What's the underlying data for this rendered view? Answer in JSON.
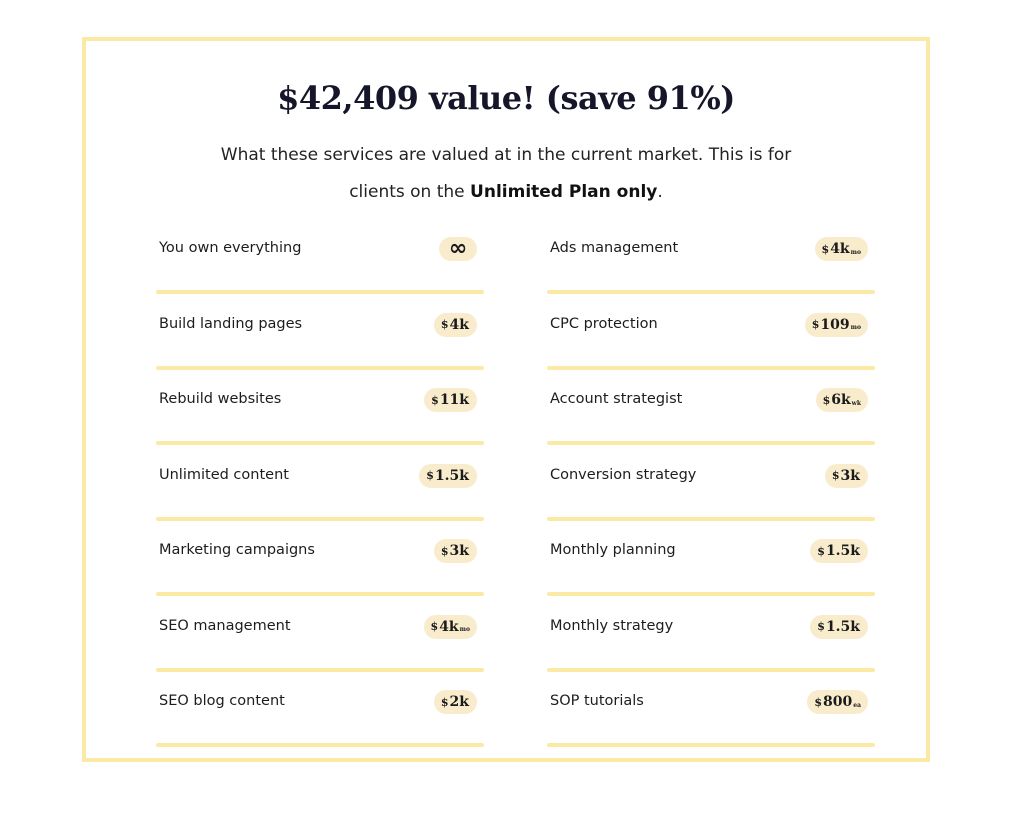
{
  "header": {
    "title": "$42,409 value! (save 91%)",
    "subtitle_line1": "What these services are valued at in the current market. This is for",
    "subtitle_line2_prefix": "clients on the ",
    "subtitle_line2_bold": "Unlimited Plan only",
    "subtitle_line2_suffix": "."
  },
  "left_items": [
    {
      "label": "You own everything",
      "icon": "infinity-icon"
    },
    {
      "label": "Build landing pages",
      "currency": "$",
      "amount": "4k",
      "period": ""
    },
    {
      "label": "Rebuild websites",
      "currency": "$",
      "amount": "11k",
      "period": ""
    },
    {
      "label": "Unlimited content",
      "currency": "$",
      "amount": "1.5k",
      "period": ""
    },
    {
      "label": "Marketing campaigns",
      "currency": "$",
      "amount": "3k",
      "period": ""
    },
    {
      "label": "SEO management",
      "currency": "$",
      "amount": "4k",
      "period": "mo"
    },
    {
      "label": "SEO blog content",
      "currency": "$",
      "amount": "2k",
      "period": ""
    }
  ],
  "right_items": [
    {
      "label": "Ads management",
      "currency": "$",
      "amount": "4k",
      "period": "mo"
    },
    {
      "label": "CPC protection",
      "currency": "$",
      "amount": "109",
      "period": "mo"
    },
    {
      "label": "Account strategist",
      "currency": "$",
      "amount": "6k",
      "period": "wk"
    },
    {
      "label": "Conversion strategy",
      "currency": "$",
      "amount": "3k",
      "period": ""
    },
    {
      "label": "Monthly planning",
      "currency": "$",
      "amount": "1.5k",
      "period": ""
    },
    {
      "label": "Monthly strategy",
      "currency": "$",
      "amount": "1.5k",
      "period": ""
    },
    {
      "label": "SOP tutorials",
      "currency": "$",
      "amount": "800",
      "period": "ea"
    }
  ],
  "colors": {
    "border": "#faeaa6",
    "badge_bg": "#f8eccd",
    "title": "#16162a"
  }
}
